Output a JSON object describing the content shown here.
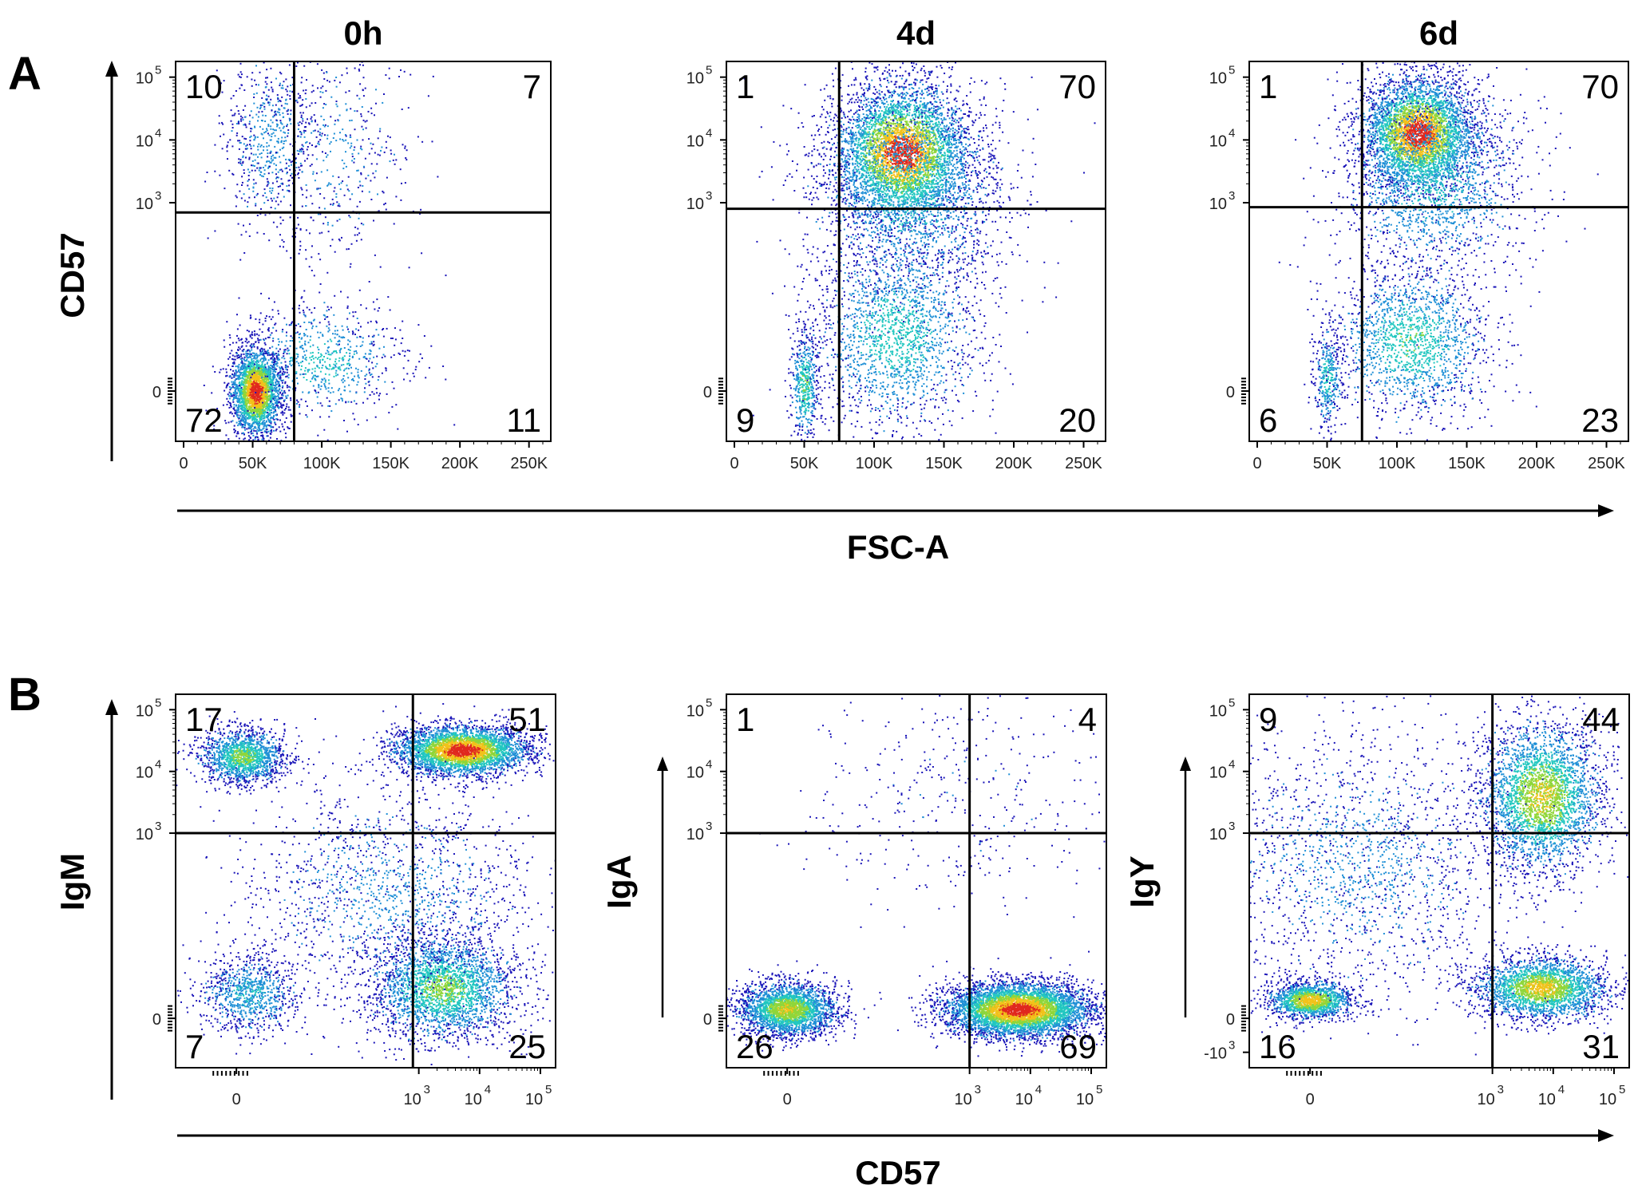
{
  "figure": {
    "panel_a": {
      "letter": "A",
      "x_axis_title": "FSC-A",
      "y_axis_title": "CD57"
    },
    "panel_b": {
      "letter": "B",
      "x_axis_title": "CD57"
    }
  },
  "colors": {
    "density_low": "#1a14b8",
    "density_midlow": "#1f8fd6",
    "density_mid": "#22c7c0",
    "density_midhigh": "#8fd63a",
    "density_high": "#f2c21a",
    "density_max": "#e0281e"
  },
  "chart_data": [
    {
      "type": "scatter",
      "title": "0h",
      "panel": "A",
      "xlabel": "FSC-A",
      "ylabel": "CD57",
      "x_scale": "linear",
      "y_scale": "biexponential",
      "x_ticks": [
        "0",
        "50K",
        "100K",
        "150K",
        "200K",
        "250K"
      ],
      "y_ticks": [
        {
          "base": "10",
          "exp": "5"
        },
        {
          "base": "10",
          "exp": "4"
        },
        {
          "base": "10",
          "exp": "3"
        },
        {
          "base": "0",
          "exp": ""
        }
      ],
      "gate": {
        "x": 80000,
        "y": 700
      },
      "quadrants": {
        "upper_left": "10",
        "upper_right": "7",
        "lower_left": "72",
        "lower_right": "11"
      },
      "clusters": [
        {
          "cx": 52000,
          "cy": 0,
          "sx": 9000,
          "sy": 0.35,
          "n": 2600,
          "density": 1.0
        },
        {
          "cx": 62000,
          "cy": 4.0,
          "sx": 17000,
          "sy": 0.7,
          "n": 600,
          "density": 0.2
        },
        {
          "cx": 110000,
          "cy": 3.8,
          "sx": 28000,
          "sy": 0.9,
          "n": 450,
          "density": 0.15
        },
        {
          "cx": 100000,
          "cy": 0.5,
          "sx": 30000,
          "sy": 0.45,
          "n": 750,
          "density": 0.35
        }
      ]
    },
    {
      "type": "scatter",
      "title": "4d",
      "panel": "A",
      "xlabel": "FSC-A",
      "ylabel": "CD57",
      "x_scale": "linear",
      "y_scale": "biexponential",
      "x_ticks": [
        "0",
        "50K",
        "100K",
        "150K",
        "200K",
        "250K"
      ],
      "y_ticks": [
        {
          "base": "10",
          "exp": "5"
        },
        {
          "base": "10",
          "exp": "4"
        },
        {
          "base": "10",
          "exp": "3"
        },
        {
          "base": "0",
          "exp": ""
        }
      ],
      "gate": {
        "x": 75000,
        "y": 800
      },
      "quadrants": {
        "upper_left": "1",
        "upper_right": "70",
        "lower_left": "9",
        "lower_right": "20"
      },
      "clusters": [
        {
          "cx": 50000,
          "cy": 0.1,
          "sx": 5000,
          "sy": 0.45,
          "n": 500,
          "density": 0.5
        },
        {
          "cx": 120000,
          "cy": 3.8,
          "sx": 24000,
          "sy": 0.55,
          "n": 4200,
          "density": 1.0
        },
        {
          "cx": 125000,
          "cy": 3.2,
          "sx": 35000,
          "sy": 0.85,
          "n": 2000,
          "density": 0.35
        },
        {
          "cx": 115000,
          "cy": 0.9,
          "sx": 30000,
          "sy": 0.75,
          "n": 1800,
          "density": 0.4
        }
      ]
    },
    {
      "type": "scatter",
      "title": "6d",
      "panel": "A",
      "xlabel": "FSC-A",
      "ylabel": "CD57",
      "x_scale": "linear",
      "y_scale": "biexponential",
      "x_ticks": [
        "0",
        "50K",
        "100K",
        "150K",
        "200K",
        "250K"
      ],
      "y_ticks": [
        {
          "base": "10",
          "exp": "5"
        },
        {
          "base": "10",
          "exp": "4"
        },
        {
          "base": "10",
          "exp": "3"
        },
        {
          "base": "0",
          "exp": ""
        }
      ],
      "gate": {
        "x": 75000,
        "y": 850
      },
      "quadrants": {
        "upper_left": "1",
        "upper_right": "70",
        "lower_left": "6",
        "lower_right": "23"
      },
      "clusters": [
        {
          "cx": 50000,
          "cy": 0.2,
          "sx": 5000,
          "sy": 0.4,
          "n": 350,
          "density": 0.4
        },
        {
          "cx": 115000,
          "cy": 4.1,
          "sx": 20000,
          "sy": 0.45,
          "n": 3800,
          "density": 1.0
        },
        {
          "cx": 125000,
          "cy": 3.4,
          "sx": 33000,
          "sy": 0.8,
          "n": 1800,
          "density": 0.35
        },
        {
          "cx": 110000,
          "cy": 0.8,
          "sx": 28000,
          "sy": 0.6,
          "n": 1600,
          "density": 0.45
        }
      ]
    },
    {
      "type": "scatter",
      "title": "",
      "panel": "B",
      "xlabel": "CD57",
      "ylabel": "IgM",
      "x_scale": "biexponential",
      "y_scale": "biexponential",
      "x_ticks": [
        {
          "base": "0",
          "exp": ""
        },
        {
          "base": "10",
          "exp": "3"
        },
        {
          "base": "10",
          "exp": "4"
        },
        {
          "base": "10",
          "exp": "5"
        }
      ],
      "y_ticks": [
        {
          "base": "10",
          "exp": "5"
        },
        {
          "base": "10",
          "exp": "4"
        },
        {
          "base": "10",
          "exp": "3"
        },
        {
          "base": "0",
          "exp": ""
        }
      ],
      "gate": {
        "x": 800,
        "y": 1000
      },
      "quadrants": {
        "upper_left": "17",
        "upper_right": "51",
        "lower_left": "7",
        "lower_right": "25"
      },
      "clusters": [
        {
          "cx": 0.1,
          "cy": 4.25,
          "sx": 0.35,
          "sy": 0.22,
          "n": 1500,
          "density": 0.55
        },
        {
          "cx": 3.7,
          "cy": 4.35,
          "sx": 0.55,
          "sy": 0.2,
          "n": 3600,
          "density": 1.0
        },
        {
          "cx": 0.2,
          "cy": 0.4,
          "sx": 0.4,
          "sy": 0.32,
          "n": 900,
          "density": 0.3
        },
        {
          "cx": 3.4,
          "cy": 0.5,
          "sx": 0.6,
          "sy": 0.42,
          "n": 2600,
          "density": 0.55
        },
        {
          "cx": 2.5,
          "cy": 2.0,
          "sx": 1.2,
          "sy": 0.9,
          "n": 1600,
          "density": 0.15
        }
      ]
    },
    {
      "type": "scatter",
      "title": "",
      "panel": "B",
      "xlabel": "CD57",
      "ylabel": "IgA",
      "x_scale": "biexponential",
      "y_scale": "biexponential",
      "x_ticks": [
        {
          "base": "0",
          "exp": ""
        },
        {
          "base": "10",
          "exp": "3"
        },
        {
          "base": "10",
          "exp": "4"
        },
        {
          "base": "10",
          "exp": "5"
        }
      ],
      "y_ticks": [
        {
          "base": "10",
          "exp": "5"
        },
        {
          "base": "10",
          "exp": "4"
        },
        {
          "base": "10",
          "exp": "3"
        },
        {
          "base": "0",
          "exp": ""
        }
      ],
      "gate": {
        "x": 1000,
        "y": 1000
      },
      "quadrants": {
        "upper_left": "1",
        "upper_right": "4",
        "lower_left": "26",
        "lower_right": "69"
      },
      "clusters": [
        {
          "cx": 0.0,
          "cy": 0.15,
          "sx": 0.4,
          "sy": 0.22,
          "n": 2600,
          "density": 0.7
        },
        {
          "cx": 3.8,
          "cy": 0.15,
          "sx": 0.6,
          "sy": 0.22,
          "n": 5200,
          "density": 1.0
        },
        {
          "cx": 2.8,
          "cy": 3.6,
          "sx": 1.2,
          "sy": 0.9,
          "n": 380,
          "density": 0.05
        }
      ]
    },
    {
      "type": "scatter",
      "title": "",
      "panel": "B",
      "xlabel": "CD57",
      "ylabel": "IgY",
      "x_scale": "biexponential",
      "y_scale": "biexponential",
      "x_ticks": [
        {
          "base": "0",
          "exp": ""
        },
        {
          "base": "10",
          "exp": "3"
        },
        {
          "base": "10",
          "exp": "4"
        },
        {
          "base": "10",
          "exp": "5"
        }
      ],
      "y_ticks": [
        {
          "base": "10",
          "exp": "5"
        },
        {
          "base": "10",
          "exp": "4"
        },
        {
          "base": "10",
          "exp": "3"
        },
        {
          "base": "0",
          "exp": ""
        },
        {
          "base": "-10",
          "exp": "3"
        }
      ],
      "gate": {
        "x": 1000,
        "y": 1000
      },
      "quadrants": {
        "upper_left": "9",
        "upper_right": "44",
        "lower_left": "16",
        "lower_right": "31"
      },
      "clusters": [
        {
          "cx": 0.0,
          "cy": 0.3,
          "sx": 0.35,
          "sy": 0.15,
          "n": 1500,
          "density": 0.8
        },
        {
          "cx": 3.8,
          "cy": 0.5,
          "sx": 0.55,
          "sy": 0.25,
          "n": 2400,
          "density": 0.75
        },
        {
          "cx": 3.8,
          "cy": 3.6,
          "sx": 0.5,
          "sy": 0.6,
          "n": 3000,
          "density": 0.7
        },
        {
          "cx": 0.8,
          "cy": 2.5,
          "sx": 1.3,
          "sy": 1.1,
          "n": 1800,
          "density": 0.15
        }
      ]
    }
  ]
}
